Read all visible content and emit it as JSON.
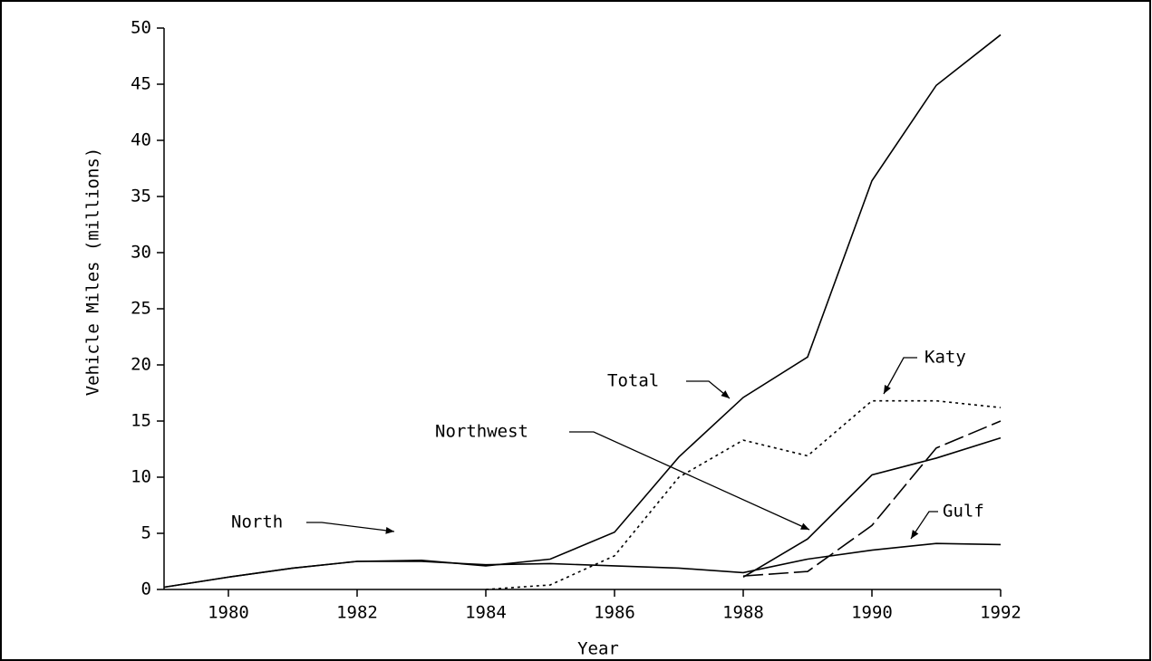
{
  "chart_data": {
    "type": "line",
    "x_label": "Year",
    "y_label": "Vehicle Miles (millions)",
    "x": [
      1979,
      1980,
      1981,
      1982,
      1983,
      1984,
      1985,
      1986,
      1987,
      1988,
      1989,
      1990,
      1991,
      1992
    ],
    "xlim": [
      1979,
      1992
    ],
    "xticks": [
      1980,
      1982,
      1984,
      1986,
      1988,
      1990,
      1992
    ],
    "ylim": [
      0,
      50
    ],
    "yticks": [
      0,
      5,
      10,
      15,
      20,
      25,
      30,
      35,
      40,
      45,
      50
    ],
    "series": [
      {
        "name": "Total",
        "color": "#000000",
        "dash": "solid",
        "values": [
          0.2,
          1.1,
          1.9,
          2.5,
          2.6,
          2.1,
          2.7,
          5.1,
          11.8,
          17.1,
          20.7,
          36.4,
          44.9,
          49.4
        ]
      },
      {
        "name": "Katy",
        "color": "#000000",
        "dash": "dotted",
        "values": [
          null,
          null,
          null,
          null,
          null,
          0,
          0.4,
          3.0,
          10.0,
          13.3,
          11.9,
          16.8,
          16.8,
          16.2
        ]
      },
      {
        "name": "Northwest",
        "color": "#000000",
        "dash": "solid",
        "values": [
          null,
          null,
          null,
          null,
          null,
          null,
          null,
          null,
          null,
          1.1,
          4.5,
          10.2,
          11.7,
          13.5
        ]
      },
      {
        "name": "North",
        "color": "#000000",
        "dash": "solid",
        "values": [
          0.2,
          1.1,
          1.9,
          2.5,
          2.5,
          2.2,
          2.3,
          2.1,
          1.9,
          1.5,
          2.7,
          3.5,
          4.1,
          4.0
        ]
      },
      {
        "name": "Gulf",
        "color": "#000000",
        "dash": "dashed",
        "values": [
          null,
          null,
          null,
          null,
          null,
          null,
          null,
          null,
          null,
          1.2,
          1.6,
          5.7,
          12.6,
          15.0
        ]
      }
    ]
  }
}
